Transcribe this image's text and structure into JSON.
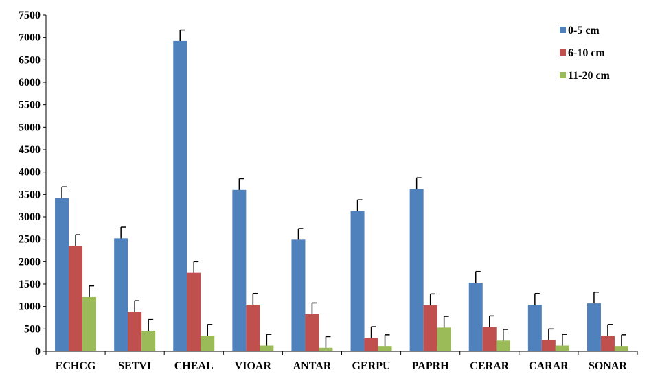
{
  "chart_data": {
    "type": "bar",
    "title": "",
    "xlabel": "",
    "ylabel": "",
    "ylim": [
      0,
      7500
    ],
    "yticks": [
      0,
      500,
      1000,
      1500,
      2000,
      2500,
      3000,
      3500,
      4000,
      4500,
      5000,
      5500,
      6000,
      6500,
      7000,
      7500
    ],
    "grid": false,
    "legend_position": "top-right",
    "categories": [
      "ECHCG",
      "SETVI",
      "CHEAL",
      "VIOAR",
      "ANTAR",
      "GERPU",
      "PAPRH",
      "CERAR",
      "CARAR",
      "SONAR"
    ],
    "series": [
      {
        "name": "0-5 cm",
        "color": "#4F81BD",
        "values": [
          3420,
          2520,
          6920,
          3600,
          2490,
          3130,
          3620,
          1530,
          1040,
          1070
        ],
        "error": [
          250,
          250,
          250,
          250,
          250,
          250,
          250,
          250,
          250,
          250
        ]
      },
      {
        "name": "6-10 cm",
        "color": "#C0504D",
        "values": [
          2350,
          880,
          1750,
          1040,
          830,
          300,
          1030,
          540,
          250,
          350
        ],
        "error": [
          250,
          250,
          250,
          250,
          250,
          250,
          250,
          250,
          250,
          250
        ]
      },
      {
        "name": "11-20 cm",
        "color": "#9BBB59",
        "values": [
          1210,
          460,
          350,
          130,
          80,
          120,
          530,
          240,
          130,
          120
        ],
        "error": [
          250,
          250,
          250,
          250,
          250,
          250,
          250,
          250,
          250,
          250
        ]
      }
    ]
  }
}
